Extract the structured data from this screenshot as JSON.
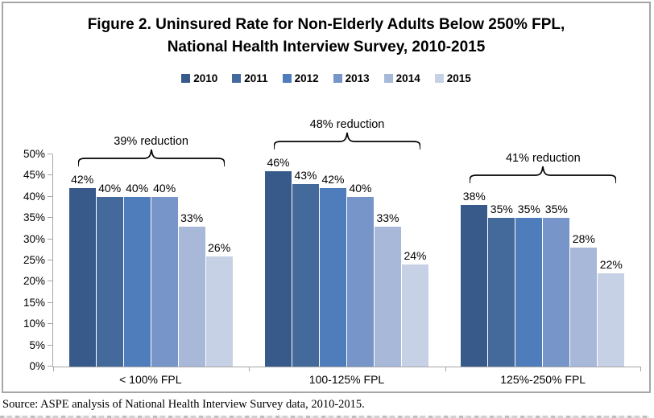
{
  "title": {
    "line1": "Figure 2. Uninsured Rate for Non-Elderly Adults Below 250% FPL,",
    "line2": "National Health Interview Survey, 2010-2015"
  },
  "source": "Source: ASPE analysis of National Health Interview Survey data, 2010-2015.",
  "chart_data": {
    "type": "bar",
    "title": "Figure 2. Uninsured Rate for Non-Elderly Adults Below 250% FPL, National Health Interview Survey, 2010-2015",
    "categories": [
      "< 100% FPL",
      "100-125% FPL",
      "125%-250% FPL"
    ],
    "series": [
      {
        "name": "2010",
        "color": "#385a8a",
        "values": [
          42,
          46,
          38
        ]
      },
      {
        "name": "2011",
        "color": "#44699b",
        "values": [
          40,
          43,
          35
        ]
      },
      {
        "name": "2012",
        "color": "#4f7cba",
        "values": [
          40,
          42,
          35
        ]
      },
      {
        "name": "2013",
        "color": "#7795c8",
        "values": [
          40,
          40,
          35
        ]
      },
      {
        "name": "2014",
        "color": "#a8b8d8",
        "values": [
          33,
          33,
          28
        ]
      },
      {
        "name": "2015",
        "color": "#c7d1e5",
        "values": [
          26,
          24,
          22
        ]
      }
    ],
    "value_suffix": "%",
    "data_labels": true,
    "annotations": [
      {
        "category": "< 100% FPL",
        "label": "39% reduction"
      },
      {
        "category": "100-125% FPL",
        "label": "48% reduction"
      },
      {
        "category": "125%-250% FPL",
        "label": "41% reduction"
      }
    ],
    "ylim": [
      0,
      50
    ],
    "ytick_step": 5,
    "ytick_suffix": "%",
    "legend_position": "top",
    "grid": false,
    "axis_color": "#a6a6a6",
    "frame_color": "#a6a6a6",
    "bracket_color": "#000000"
  }
}
